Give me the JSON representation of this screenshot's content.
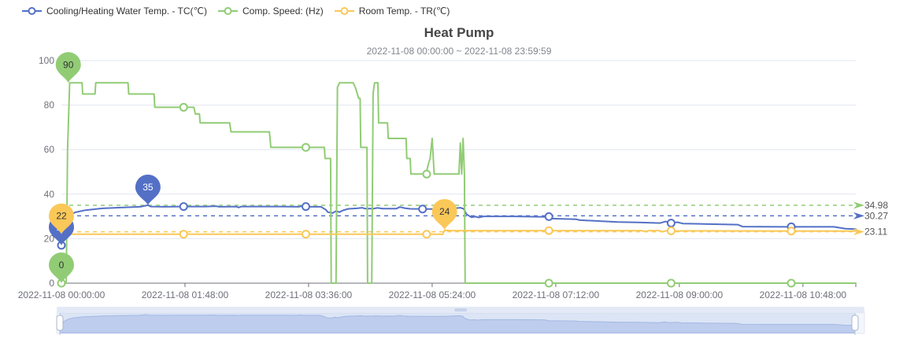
{
  "header": {
    "title": "Heat Pump",
    "subtitle": "2022-11-08 00:00:00 ~ 2022-11-08 23:59:59"
  },
  "legend": {
    "items": [
      {
        "label": "Cooling/Heating Water Temp. - TC(℃)",
        "color": "#5470c6",
        "slug": "water-temp-tc"
      },
      {
        "label": "Comp. Speed: (Hz)",
        "color": "#91cc75",
        "slug": "comp-speed"
      },
      {
        "label": "Room Temp. - TR(℃)",
        "color": "#fac858",
        "slug": "room-temp-tr"
      }
    ]
  },
  "chart_data": {
    "type": "line",
    "title": "Heat Pump",
    "subtitle": "2022-11-08 00:00:00 ~ 2022-11-08 23:59:59",
    "xlabel": "",
    "ylabel": "",
    "ylim": [
      0,
      100
    ],
    "y_ticks": [
      0,
      20,
      40,
      60,
      80,
      100
    ],
    "x_domain_hours": [
      0,
      11.57
    ],
    "x_ticks": {
      "hours": [
        0,
        1.8,
        3.6,
        5.4,
        7.2,
        9,
        10.8
      ],
      "labels": [
        "2022-11-08 00:00:00",
        "2022-11-08 01:48:00",
        "2022-11-08 03:36:00",
        "2022-11-08 05:24:00",
        "2022-11-08 07:12:00",
        "2022-11-08 09:00:00",
        "2022-11-08 10:48:00"
      ]
    },
    "grid": true,
    "legend_position": "top-left",
    "axis_color": "#6E7079",
    "grid_color": "#E0E6F1",
    "avg_label_color": "#555555",
    "series": [
      {
        "name": "Cooling/Heating Water Temp. - TC(℃)",
        "slug": "water-temp-tc",
        "color": "#5470c6",
        "points": [
          [
            0,
            17
          ],
          [
            0.03,
            24
          ],
          [
            0.06,
            28
          ],
          [
            0.12,
            30.5
          ],
          [
            0.2,
            31.8
          ],
          [
            0.35,
            32.8
          ],
          [
            0.6,
            33.6
          ],
          [
            0.9,
            34
          ],
          [
            1.15,
            34.3
          ],
          [
            1.26,
            35
          ],
          [
            1.3,
            34.4
          ],
          [
            1.5,
            34.3
          ],
          [
            1.75,
            34.4
          ],
          [
            2.1,
            34.4
          ],
          [
            2.25,
            34.6
          ],
          [
            2.3,
            34.3
          ],
          [
            2.55,
            34.4
          ],
          [
            2.58,
            34
          ],
          [
            2.62,
            34.4
          ],
          [
            3.2,
            34.4
          ],
          [
            3.45,
            34.3
          ],
          [
            3.5,
            34.6
          ],
          [
            3.55,
            34.3
          ],
          [
            3.78,
            34.3
          ],
          [
            3.85,
            33
          ],
          [
            3.88,
            31.9
          ],
          [
            3.95,
            31.5
          ],
          [
            4,
            32.4
          ],
          [
            4.05,
            31.9
          ],
          [
            4.1,
            32.7
          ],
          [
            4.18,
            33.4
          ],
          [
            4.3,
            33.6
          ],
          [
            4.38,
            33.9
          ],
          [
            4.42,
            33.5
          ],
          [
            4.55,
            33.5
          ],
          [
            4.6,
            33.8
          ],
          [
            4.68,
            33.5
          ],
          [
            4.88,
            33.5
          ],
          [
            4.93,
            34.2
          ],
          [
            5,
            33.7
          ],
          [
            5.08,
            33.4
          ],
          [
            5.35,
            33.3
          ],
          [
            5.6,
            33.3
          ],
          [
            5.81,
            33.9
          ],
          [
            5.86,
            33.4
          ],
          [
            5.9,
            31
          ],
          [
            5.97,
            29.6
          ],
          [
            6.03,
            29.9
          ],
          [
            6.08,
            29.5
          ],
          [
            6.15,
            30
          ],
          [
            6.6,
            30
          ],
          [
            7.05,
            29.8
          ],
          [
            7.12,
            29
          ],
          [
            7.5,
            28.7
          ],
          [
            7.55,
            28.3
          ],
          [
            8.1,
            27.5
          ],
          [
            8.4,
            27.3
          ],
          [
            8.72,
            27
          ],
          [
            8.8,
            27.7
          ],
          [
            8.87,
            27
          ],
          [
            8.97,
            27.4
          ],
          [
            9.05,
            26.8
          ],
          [
            9.35,
            26.6
          ],
          [
            9.85,
            26.3
          ],
          [
            9.92,
            25.4
          ],
          [
            10.5,
            25.3
          ],
          [
            11.25,
            25.3
          ],
          [
            11.42,
            24.5
          ],
          [
            11.57,
            24.3
          ]
        ],
        "markers": [
          [
            0,
            17
          ],
          [
            1.78,
            34.4
          ],
          [
            3.56,
            34.4
          ],
          [
            5.26,
            33.3
          ],
          [
            7.1,
            29.9
          ],
          [
            8.88,
            27
          ],
          [
            10.63,
            25.3
          ]
        ],
        "avg_line": {
          "value": 30.27,
          "label": "30.27"
        },
        "mark_points": [
          {
            "label": "35",
            "x": 1.26,
            "value": 35,
            "text_color": "#ffffff"
          },
          {
            "label": "17",
            "x": 0,
            "value": 17,
            "text_color": "#ffffff"
          }
        ]
      },
      {
        "name": "Comp. Speed: (Hz)",
        "slug": "comp-speed",
        "color": "#91cc75",
        "points": [
          [
            0,
            0
          ],
          [
            0.07,
            0
          ],
          [
            0.09,
            60
          ],
          [
            0.12,
            90
          ],
          [
            0.3,
            90
          ],
          [
            0.31,
            85
          ],
          [
            0.49,
            85
          ],
          [
            0.5,
            90
          ],
          [
            0.97,
            90
          ],
          [
            0.98,
            85
          ],
          [
            1.35,
            85
          ],
          [
            1.36,
            79
          ],
          [
            1.93,
            79
          ],
          [
            1.95,
            76
          ],
          [
            2.01,
            76
          ],
          [
            2.02,
            72
          ],
          [
            2.45,
            72
          ],
          [
            2.47,
            68
          ],
          [
            3.03,
            68
          ],
          [
            3.05,
            61
          ],
          [
            3.83,
            61
          ],
          [
            3.84,
            56
          ],
          [
            3.92,
            56
          ],
          [
            3.93,
            0
          ],
          [
            4,
            0
          ],
          [
            4.02,
            88
          ],
          [
            4.05,
            90
          ],
          [
            4.25,
            90
          ],
          [
            4.28,
            88
          ],
          [
            4.33,
            83
          ],
          [
            4.35,
            83
          ],
          [
            4.36,
            61
          ],
          [
            4.45,
            61
          ],
          [
            4.46,
            0
          ],
          [
            4.52,
            0
          ],
          [
            4.54,
            85
          ],
          [
            4.56,
            90
          ],
          [
            4.61,
            90
          ],
          [
            4.62,
            72
          ],
          [
            4.75,
            72
          ],
          [
            4.76,
            65
          ],
          [
            5.02,
            65
          ],
          [
            5.03,
            56
          ],
          [
            5.08,
            56
          ],
          [
            5.09,
            49
          ],
          [
            5.31,
            49
          ],
          [
            5.34,
            53
          ],
          [
            5.37,
            56
          ],
          [
            5.4,
            65
          ],
          [
            5.43,
            49
          ],
          [
            5.79,
            49
          ],
          [
            5.81,
            63
          ],
          [
            5.83,
            49
          ],
          [
            5.85,
            65
          ],
          [
            5.87,
            49
          ],
          [
            5.88,
            0
          ],
          [
            11.57,
            0
          ]
        ],
        "markers": [
          [
            0,
            0
          ],
          [
            1.78,
            79
          ],
          [
            3.56,
            61
          ],
          [
            5.32,
            49
          ],
          [
            7.1,
            0
          ],
          [
            8.88,
            0
          ],
          [
            10.63,
            0
          ]
        ],
        "avg_line": {
          "value": 34.98,
          "label": "34.98"
        },
        "mark_points": [
          {
            "label": "90",
            "x": 0.1,
            "value": 90,
            "text_color": "#333333"
          },
          {
            "label": "0",
            "x": 0,
            "value": 0,
            "text_color": "#333333"
          }
        ]
      },
      {
        "name": "Room Temp. - TR(℃)",
        "slug": "room-temp-tr",
        "color": "#fac858",
        "points": [
          [
            0,
            22
          ],
          [
            5.45,
            22
          ],
          [
            5.52,
            22
          ],
          [
            5.55,
            21.8
          ],
          [
            5.58,
            23.7
          ],
          [
            5.7,
            23.6
          ],
          [
            8.45,
            23.6
          ],
          [
            8.5,
            23.2
          ],
          [
            8.56,
            23.6
          ],
          [
            8.7,
            23.6
          ],
          [
            8.75,
            23.1
          ],
          [
            8.82,
            23.6
          ],
          [
            8.95,
            23.4
          ],
          [
            9.1,
            23.5
          ],
          [
            11.57,
            23.4
          ]
        ],
        "markers": [
          [
            1.78,
            22
          ],
          [
            3.56,
            22
          ],
          [
            5.32,
            22
          ],
          [
            7.1,
            23.6
          ],
          [
            8.88,
            23.5
          ],
          [
            10.63,
            23.4
          ]
        ],
        "avg_line": {
          "value": 23.11,
          "label": "23.11"
        },
        "mark_points": [
          {
            "label": "22",
            "x": 0,
            "value": 22,
            "text_color": "#333333"
          },
          {
            "label": "24",
            "x": 5.58,
            "value": 24,
            "text_color": "#333333"
          }
        ]
      }
    ],
    "datazoom": {
      "track_fill": "#f3f6fb",
      "track_border": "#e3e8f2",
      "topbar_fill": "#e3eaf6",
      "filler": "rgba(142,170,222,0.22)",
      "silhouette_fill": "#ccd8f1",
      "silhouette_line": "#a8bce8",
      "handle_border": "#a9b6d0"
    }
  }
}
